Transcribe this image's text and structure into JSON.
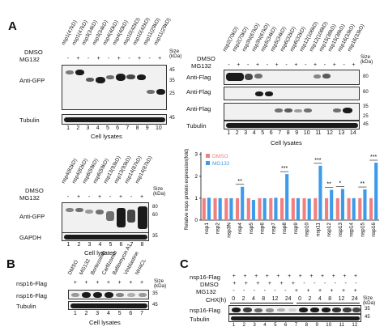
{
  "panels": {
    "a": "A",
    "b": "B",
    "c": "C"
  },
  "common": {
    "dmso": "DMSO",
    "mg132": "MG132",
    "size": "Size",
    "kda": "(kDa)",
    "tubulin": "Tubulin",
    "gapdh": "GAPDH",
    "anti_gfp": "Anti-GFP",
    "anti_flag": "Anti-Flag",
    "cell_lysates": "Cell lysates",
    "nsp16_flag": "nsp16-Flag",
    "chx": "CHX(h)"
  },
  "blot1": {
    "lanes": [
      "nsp1(47kD)",
      "nsp1(47kD)",
      "nsp3(34kD)",
      "nsp3(34kD)",
      "nsp4(40kD)",
      "nsp4(40kD)",
      "nsp10(42kD)",
      "nsp10(42kD)",
      "nsp11(29kD)",
      "nsp11(29kD)"
    ],
    "mg132": [
      "-",
      "+",
      "-",
      "+",
      "-",
      "+",
      "-",
      "+",
      "-",
      "+"
    ],
    "numbers": [
      "1",
      "2",
      "3",
      "4",
      "5",
      "6",
      "7",
      "8",
      "9",
      "10"
    ],
    "markers": [
      "45",
      "35",
      "25",
      "45"
    ]
  },
  "blot2": {
    "lanes": [
      "nsp2(70kD)",
      "nsp2(70kD)",
      "nsp3N(67kD)",
      "nsp3N(67kD)",
      "nsp5(34kD)",
      "nsp5(34kD)",
      "nsp6(32kD)",
      "nsp6(32kD)",
      "nsp12(106kD)",
      "nsp12(106kD)",
      "nsp15(38kD)",
      "nsp15(38kD)",
      "nsp16(33kD)",
      "nsp16(33kD)"
    ],
    "mg132": [
      "-",
      "+",
      "-",
      "+",
      "-",
      "+",
      "-",
      "+",
      "-",
      "+",
      "-",
      "+",
      "-",
      "+"
    ],
    "numbers": [
      "1",
      "2",
      "3",
      "4",
      "5",
      "6",
      "7",
      "8",
      "9",
      "10",
      "11",
      "12",
      "13",
      "14"
    ],
    "markers": [
      "80",
      "60",
      "35",
      "25",
      "45"
    ]
  },
  "blot3": {
    "lanes": [
      "nsp4(82kD)",
      "nsp4(82kD)",
      "nsp6(59kD)",
      "nsp6(59kD)",
      "nsp13(93kD)",
      "nsp13(93kD)",
      "nsp14(87kD)",
      "nsp14(87kD)"
    ],
    "mg132": [
      "-",
      "+",
      "-",
      "+",
      "-",
      "+",
      "-",
      "+"
    ],
    "numbers": [
      "1",
      "2",
      "3",
      "4",
      "5",
      "6",
      "7",
      "8"
    ],
    "markers": [
      "80",
      "60",
      "35"
    ]
  },
  "chart_data": {
    "type": "bar",
    "categories": [
      "nsp1",
      "nsp2",
      "nsp3N",
      "nsp4",
      "nsp5",
      "nsp6",
      "nsp7",
      "nsp8",
      "nsp9",
      "nsp10",
      "nsp11",
      "nsp12",
      "nsp13",
      "nsp14",
      "nsp15",
      "nsp16"
    ],
    "series": [
      {
        "name": "DMSO",
        "color": "#f08080",
        "values": [
          1,
          1,
          1,
          1,
          1,
          1,
          1,
          1,
          1,
          1,
          1,
          1,
          1,
          1,
          1,
          1
        ]
      },
      {
        "name": "MG132",
        "color": "#3d9be9",
        "values": [
          1.02,
          1.0,
          1.0,
          1.52,
          0.92,
          1.0,
          1.02,
          2.1,
          1.0,
          0.98,
          2.48,
          1.38,
          1.42,
          1.0,
          1.4,
          2.62
        ]
      }
    ],
    "significance": [
      "",
      "",
      "",
      "**",
      "",
      "",
      "",
      "***",
      "",
      "",
      "***",
      "**",
      "*",
      "",
      "**",
      "***"
    ],
    "ylabel": "Relative nsps protein expression(fold)",
    "yticks": [
      "0",
      "1",
      "2",
      "3"
    ],
    "ylim": [
      0,
      3.1
    ],
    "legend": "top-left"
  },
  "blotB": {
    "lanes": [
      "DMSO",
      "MG132",
      "Bortezomib",
      "Carfilzomib",
      "Bafilomycin A1",
      "Vinblastine",
      "NH4CL"
    ],
    "flag": [
      "+",
      "+",
      "+",
      "+",
      "+",
      "+",
      "+"
    ],
    "numbers": [
      "1",
      "2",
      "3",
      "4",
      "5",
      "6",
      "7"
    ],
    "markers": [
      "35",
      "45"
    ]
  },
  "blotC": {
    "flag": [
      "+",
      "+",
      "+",
      "+",
      "+",
      "+",
      "+",
      "+",
      "+",
      "+",
      "+",
      "+"
    ],
    "dmso": [
      "+",
      "+",
      "+",
      "+",
      "+",
      "+",
      "-",
      "-",
      "-",
      "-",
      "-",
      "-"
    ],
    "mg132": [
      "-",
      "-",
      "-",
      "-",
      "-",
      "-",
      "+",
      "+",
      "+",
      "+",
      "+",
      "+"
    ],
    "chx": [
      "0",
      "2",
      "4",
      "8",
      "12",
      "24",
      "0",
      "2",
      "4",
      "8",
      "12",
      "24"
    ],
    "numbers": [
      "1",
      "2",
      "3",
      "4",
      "5",
      "6",
      "7",
      "8",
      "9",
      "10",
      "11",
      "12"
    ],
    "markers": [
      "35",
      "45"
    ]
  }
}
